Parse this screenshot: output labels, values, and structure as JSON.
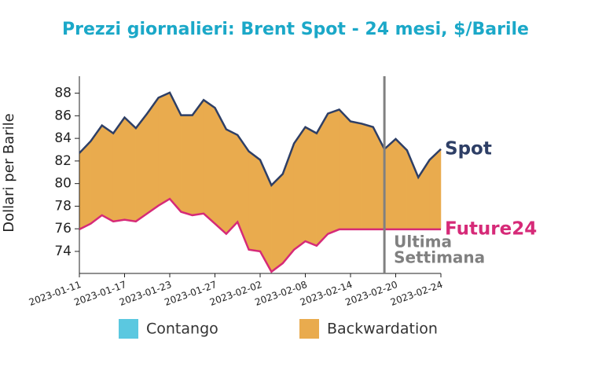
{
  "chart_data": {
    "type": "line",
    "title": "Prezzi giornalieri: Brent Spot - 24 mesi, $/Barile",
    "y_label": "Dollari per Barile",
    "x": [
      "2023-01-11",
      "2023-01-12",
      "2023-01-13",
      "2023-01-16",
      "2023-01-17",
      "2023-01-18",
      "2023-01-19",
      "2023-01-20",
      "2023-01-23",
      "2023-01-24",
      "2023-01-25",
      "2023-01-26",
      "2023-01-27",
      "2023-01-30",
      "2023-01-31",
      "2023-02-01",
      "2023-02-02",
      "2023-02-03",
      "2023-02-06",
      "2023-02-07",
      "2023-02-08",
      "2023-02-09",
      "2023-02-10",
      "2023-02-13",
      "2023-02-14",
      "2023-02-15",
      "2023-02-16",
      "2023-02-17",
      "2023-02-20",
      "2023-02-21",
      "2023-02-22",
      "2023-02-23",
      "2023-02-24"
    ],
    "xticks": [
      "2023-01-11",
      "2023-01-17",
      "2023-01-23",
      "2023-01-27",
      "2023-02-02",
      "2023-02-08",
      "2023-02-14",
      "2023-02-20",
      "2023-02-24"
    ],
    "series": [
      {
        "name": "Spot",
        "color": "#2e3f66",
        "values": [
          82.7,
          83.75,
          85.15,
          84.45,
          85.85,
          84.9,
          86.2,
          87.6,
          88.05,
          86.05,
          86.05,
          87.4,
          86.7,
          84.8,
          84.3,
          82.85,
          82.1,
          79.85,
          80.85,
          83.55,
          85.0,
          84.45,
          86.2,
          86.55,
          85.5,
          85.3,
          85.0,
          83.05,
          83.95,
          82.95,
          80.55,
          82.1,
          83.05
        ]
      },
      {
        "name": "Future24",
        "color": "#d62a78",
        "values": [
          75.95,
          76.45,
          77.2,
          76.65,
          76.8,
          76.65,
          77.35,
          78.05,
          78.65,
          77.5,
          77.2,
          77.35,
          76.45,
          75.55,
          76.6,
          74.15,
          74.0,
          72.2,
          72.95,
          74.15,
          74.9,
          74.5,
          75.55,
          75.95,
          75.95,
          75.95,
          75.95,
          75.95,
          75.95,
          75.95,
          75.95,
          75.95,
          75.95
        ]
      }
    ],
    "fills": [
      {
        "name": "Contango",
        "color": "#5bc8e0"
      },
      {
        "name": "Backwardation",
        "color": "#e9ab4e"
      }
    ],
    "ylim": [
      72.05,
      89.5
    ],
    "yticks": [
      74,
      76,
      78,
      80,
      82,
      84,
      86,
      88
    ],
    "vline_x": "2023-02-17",
    "vline_color": "#808080",
    "annotation": [
      "Ultima",
      "Settimana"
    ]
  }
}
